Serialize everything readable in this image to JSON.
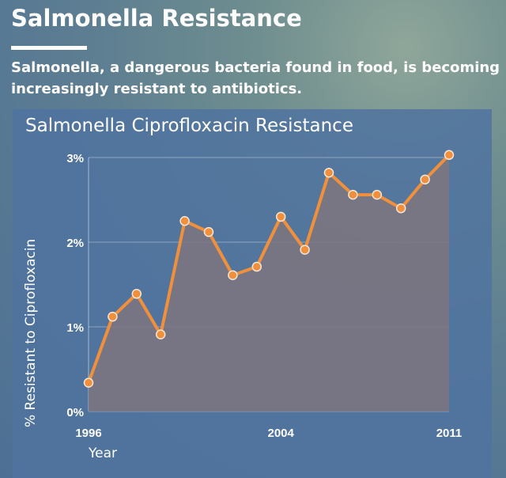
{
  "header": {
    "title": "Salmonella Resistance",
    "subtitle": "Salmonella, a dangerous bacteria found in food, is becoming increasingly resistant to antibiotics."
  },
  "colors": {
    "line": "#f0903c",
    "area": "#7b7680",
    "panel": "#5073a0"
  },
  "chart_data": {
    "type": "area",
    "title": "Salmonella Ciprofloxacin Resistance",
    "xlabel": "Year",
    "ylabel": "% Resistant to Ciprofloxacin",
    "x": [
      1996,
      1997,
      1998,
      1999,
      2000,
      2001,
      2002,
      2003,
      2004,
      2005,
      2006,
      2007,
      2008,
      2009,
      2010,
      2011
    ],
    "values": [
      0.34,
      1.12,
      1.39,
      0.91,
      2.25,
      2.12,
      1.61,
      1.71,
      2.3,
      1.91,
      2.82,
      2.56,
      2.56,
      2.4,
      2.74,
      3.03
    ],
    "ylim": [
      0,
      3
    ],
    "xlim": [
      1996,
      2011
    ],
    "xticks": [
      "1996",
      "2004",
      "2011"
    ],
    "yticks": [
      "0%",
      "1%",
      "2%",
      "3%"
    ],
    "grid": true,
    "legend": "none"
  }
}
